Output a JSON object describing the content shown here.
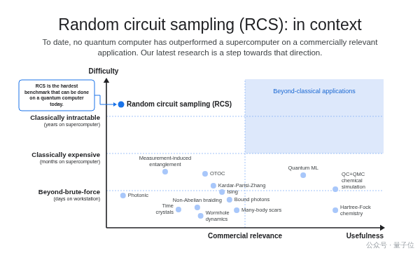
{
  "chart_data": {
    "type": "scatter",
    "title": "Random circuit sampling (RCS): in context",
    "subtitle": "To date, no quantum computer has outperformed a supercomputer on a commercially relevant application. Our latest research is a step towards that direction.",
    "xlabel": "Commercial relevance",
    "ylabel": "Difficulty",
    "xlim": [
      0,
      100
    ],
    "ylim": [
      0,
      100
    ],
    "yticks": [
      {
        "value": 25,
        "label": [
          "Beyond-brute-force",
          "(days on workstation)"
        ]
      },
      {
        "value": 50,
        "label": [
          "Classically expensive",
          "(months on supercomputer)"
        ]
      },
      {
        "value": 75,
        "label": [
          "Classically intractable",
          "(years on supercomputer)"
        ]
      }
    ],
    "grid": true,
    "tick_labels": "y",
    "point_labels": [
      [
        "Random circuit sampling (RCS)"
      ],
      [
        "Photonic"
      ],
      [
        "Measurement-induced",
        "entanglement"
      ],
      [
        "OTOC"
      ],
      [
        "Kardar-Parisi-Zhang"
      ],
      [
        "Ising"
      ],
      [
        "Bound photons"
      ],
      [
        "Non-Abelian braiding"
      ],
      [
        "Time",
        "crystals"
      ],
      [
        "Wormhole",
        "dynamics"
      ],
      [
        "Many-body scars"
      ],
      [
        "Quantum ML"
      ],
      [
        "QC+QMC",
        "chemical",
        "simulation"
      ],
      [
        "Hartree-Fock",
        "chemistry"
      ]
    ],
    "x": [
      5.3,
      6,
      21.2,
      35.6,
      38.6,
      41.7,
      44.4,
      32.8,
      26,
      34,
      47,
      71,
      82.6,
      82.6
    ],
    "values": [
      83,
      21.7,
      37.7,
      36.3,
      28.3,
      24,
      18.9,
      13.7,
      12.3,
      8,
      11.8,
      35.4,
      26,
      11.8
    ],
    "colors": [
      "#1a73e8",
      "#a8c7fa",
      "#a8c7fa",
      "#a8c7fa",
      "#a8c7fa",
      "#a8c7fa",
      "#a8c7fa",
      "#a8c7fa",
      "#a8c7fa",
      "#a8c7fa",
      "#a8c7fa",
      "#a8c7fa",
      "#a8c7fa",
      "#a8c7fa"
    ],
    "region": {
      "label": "Beyond-classical applications",
      "xlim": [
        50,
        100
      ],
      "ylim": [
        50,
        100
      ],
      "color": "#dde8fb"
    },
    "annotations": {
      "axis_end": "Usefulness",
      "callout": "RCS is the hardest benchmark that can be done on a quantum computer today.",
      "watermark": "公众号 · 量子位"
    }
  }
}
